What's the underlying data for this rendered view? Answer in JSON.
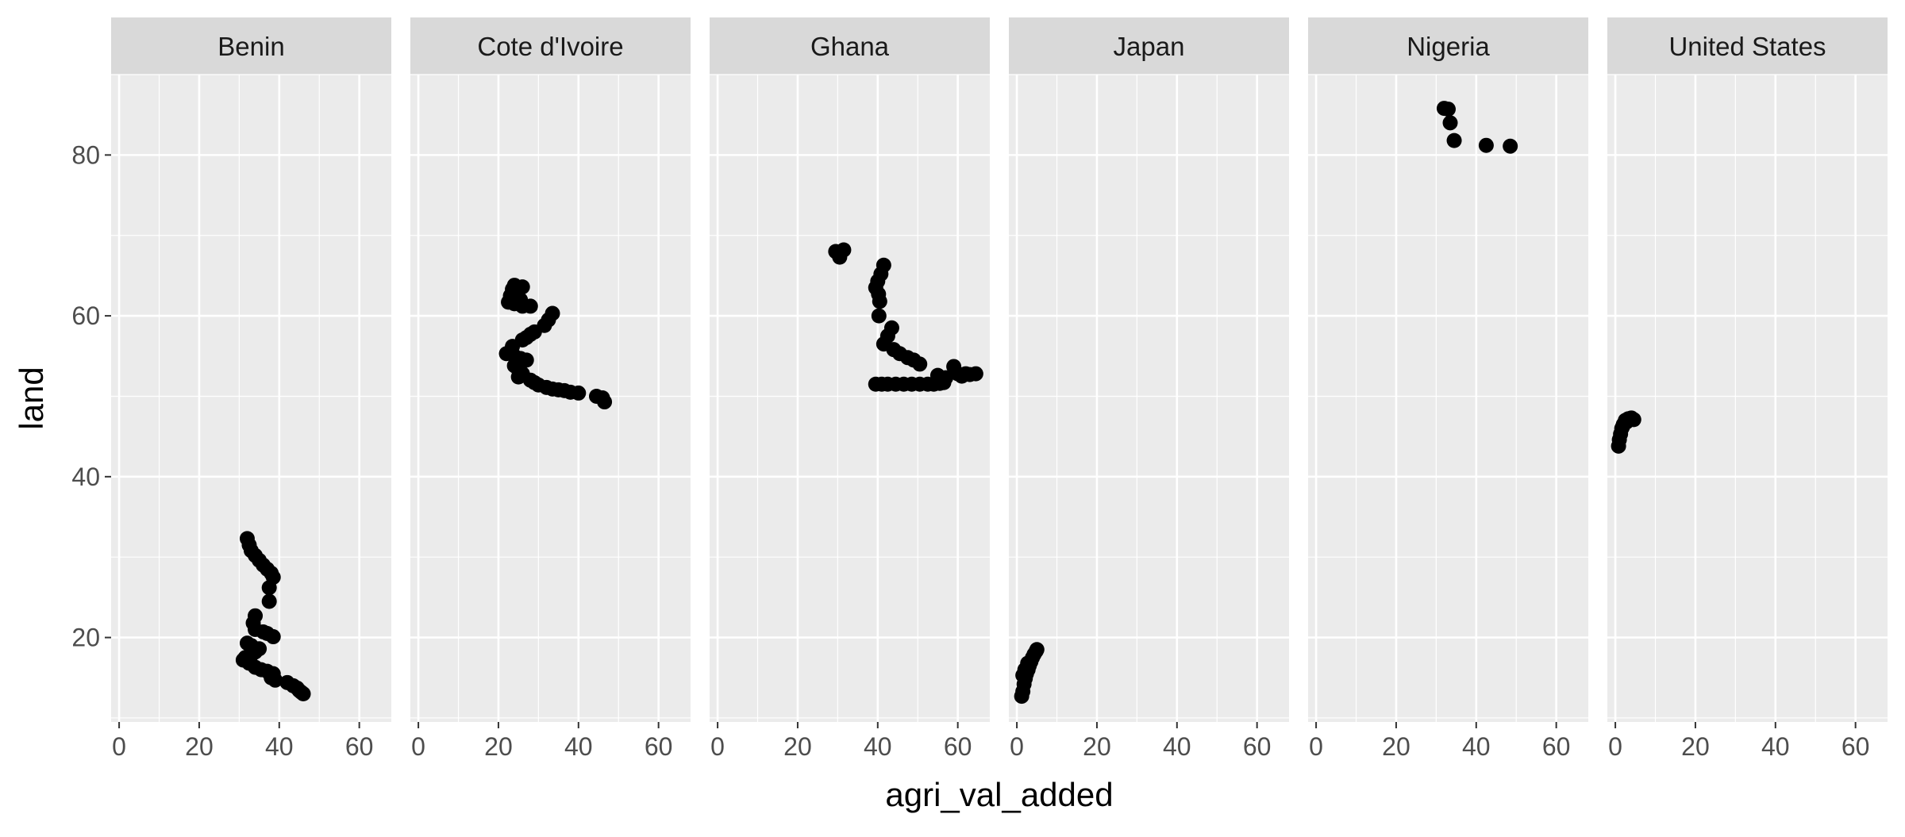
{
  "chart_data": {
    "type": "scatter",
    "facet_by": "country",
    "xlabel": "agri_val_added",
    "ylabel": "land",
    "xlim": [
      -2,
      68
    ],
    "ylim": [
      9.5,
      90
    ],
    "x_ticks": [
      0,
      20,
      40,
      60
    ],
    "y_ticks": [
      20,
      40,
      60,
      80
    ],
    "grid": true,
    "colors": {
      "panel_background": "#ebebeb",
      "strip_background": "#d9d9d9",
      "grid": "#ffffff",
      "points": "#000000"
    },
    "facets": [
      {
        "label": "Benin",
        "points": [
          [
            32,
            32.3
          ],
          [
            32.5,
            31.5
          ],
          [
            33,
            30.8
          ],
          [
            34,
            30.2
          ],
          [
            35,
            29.6
          ],
          [
            36,
            29.0
          ],
          [
            37,
            28.5
          ],
          [
            38,
            28.0
          ],
          [
            38.5,
            27.5
          ],
          [
            37.5,
            26.2
          ],
          [
            37.5,
            24.5
          ],
          [
            34,
            22.7
          ],
          [
            33.5,
            21.8
          ],
          [
            34,
            21.0
          ],
          [
            36,
            20.7
          ],
          [
            37,
            20.5
          ],
          [
            38.5,
            20.1
          ],
          [
            32,
            19.3
          ],
          [
            33,
            19.0
          ],
          [
            35,
            18.6
          ],
          [
            34,
            18.2
          ],
          [
            33,
            17.8
          ],
          [
            31.5,
            17.5
          ],
          [
            31,
            17.2
          ],
          [
            32.5,
            16.8
          ],
          [
            34,
            16.3
          ],
          [
            35.5,
            16.0
          ],
          [
            37,
            15.8
          ],
          [
            38.5,
            15.5
          ],
          [
            38,
            15.0
          ],
          [
            39,
            14.7
          ],
          [
            42,
            14.4
          ],
          [
            43.5,
            14.0
          ],
          [
            44.5,
            13.7
          ],
          [
            45,
            13.4
          ],
          [
            45.5,
            13.2
          ],
          [
            46,
            13.0
          ]
        ]
      },
      {
        "label": "Cote d'Ivoire",
        "points": [
          [
            22.5,
            61.7
          ],
          [
            23,
            62.5
          ],
          [
            23.5,
            63.3
          ],
          [
            24,
            63.8
          ],
          [
            25,
            63.5
          ],
          [
            26,
            63.6
          ],
          [
            24.5,
            62.8
          ],
          [
            25.5,
            62.0
          ],
          [
            24,
            61.5
          ],
          [
            26,
            61.2
          ],
          [
            28,
            61.2
          ],
          [
            33.5,
            60.3
          ],
          [
            32.5,
            59.5
          ],
          [
            31.5,
            58.8
          ],
          [
            29,
            58.0
          ],
          [
            28,
            57.7
          ],
          [
            27,
            57.3
          ],
          [
            26,
            57.0
          ],
          [
            23.5,
            56.2
          ],
          [
            22,
            55.3
          ],
          [
            24,
            55.0
          ],
          [
            25.5,
            54.7
          ],
          [
            27,
            54.5
          ],
          [
            24,
            53.8
          ],
          [
            25,
            53.3
          ],
          [
            26,
            52.8
          ],
          [
            25,
            52.4
          ],
          [
            28,
            52.0
          ],
          [
            29,
            51.7
          ],
          [
            30,
            51.4
          ],
          [
            32,
            51.1
          ],
          [
            33.5,
            50.9
          ],
          [
            35,
            50.8
          ],
          [
            36.5,
            50.7
          ],
          [
            38,
            50.5
          ],
          [
            40,
            50.4
          ],
          [
            44.5,
            50.0
          ],
          [
            46,
            49.8
          ],
          [
            46.5,
            49.3
          ]
        ]
      },
      {
        "label": "Ghana",
        "points": [
          [
            29.5,
            68.0
          ],
          [
            30.5,
            67.3
          ],
          [
            31.5,
            68.2
          ],
          [
            30,
            67.8
          ],
          [
            41.5,
            66.3
          ],
          [
            40.8,
            65.2
          ],
          [
            40,
            64.3
          ],
          [
            39.5,
            63.5
          ],
          [
            40.2,
            62.7
          ],
          [
            40.5,
            61.8
          ],
          [
            40.3,
            60.0
          ],
          [
            43.5,
            58.5
          ],
          [
            42.5,
            57.5
          ],
          [
            41.5,
            56.5
          ],
          [
            44,
            55.8
          ],
          [
            45.5,
            55.3
          ],
          [
            47.5,
            54.8
          ],
          [
            49,
            54.5
          ],
          [
            50.5,
            54.0
          ],
          [
            55,
            52.6
          ],
          [
            57,
            52.3
          ],
          [
            59,
            53.7
          ],
          [
            60,
            52.8
          ],
          [
            61,
            52.5
          ],
          [
            62,
            52.8
          ],
          [
            63,
            52.7
          ],
          [
            64.5,
            52.8
          ],
          [
            39.5,
            51.5
          ],
          [
            41,
            51.5
          ],
          [
            42.5,
            51.5
          ],
          [
            44.5,
            51.5
          ],
          [
            46.5,
            51.5
          ],
          [
            48.5,
            51.5
          ],
          [
            50.5,
            51.5
          ],
          [
            52.5,
            51.5
          ],
          [
            54,
            51.5
          ],
          [
            55.5,
            51.6
          ],
          [
            56.5,
            51.7
          ]
        ]
      },
      {
        "label": "Japan",
        "points": [
          [
            1.2,
            12.7
          ],
          [
            1.5,
            13.3
          ],
          [
            1.8,
            14.2
          ],
          [
            2.1,
            14.9
          ],
          [
            2.4,
            15.5
          ],
          [
            2.8,
            16.0
          ],
          [
            3.1,
            16.5
          ],
          [
            3.5,
            17.0
          ],
          [
            3.9,
            17.5
          ],
          [
            4.3,
            17.9
          ],
          [
            4.8,
            18.3
          ],
          [
            5.0,
            18.5
          ],
          [
            1.5,
            15.3
          ],
          [
            2.0,
            16.0
          ],
          [
            2.7,
            16.8
          ]
        ]
      },
      {
        "label": "Nigeria",
        "points": [
          [
            32,
            85.8
          ],
          [
            33,
            85.7
          ],
          [
            33.5,
            84.0
          ],
          [
            34.5,
            81.8
          ],
          [
            42.5,
            81.2
          ],
          [
            48.5,
            81.1
          ]
        ]
      },
      {
        "label": "United States",
        "points": [
          [
            0.8,
            43.8
          ],
          [
            1.0,
            44.6
          ],
          [
            1.3,
            45.3
          ],
          [
            1.6,
            46.0
          ],
          [
            2.0,
            46.5
          ],
          [
            2.5,
            47.0
          ],
          [
            3.2,
            47.2
          ],
          [
            4.0,
            47.3
          ],
          [
            4.6,
            47.1
          ],
          [
            2.8,
            46.8
          ],
          [
            1.8,
            46.2
          ]
        ]
      }
    ]
  }
}
